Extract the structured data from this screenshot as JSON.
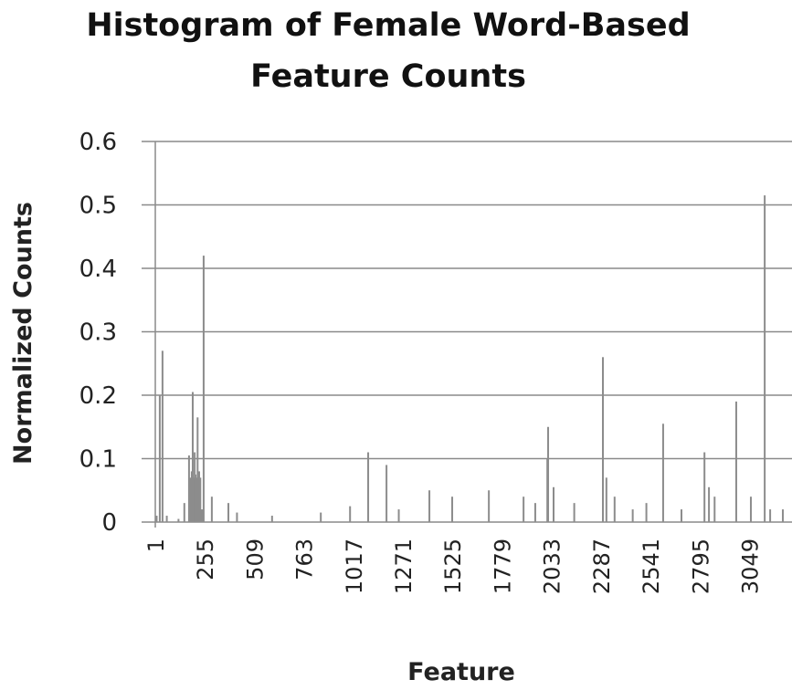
{
  "chart_data": {
    "type": "bar",
    "title": "Histogram of Female Word-Based Feature Counts",
    "x_label": "Feature",
    "y_label": "Normalized Counts",
    "x": [
      8,
      24,
      38,
      60,
      120,
      150,
      174,
      182,
      188,
      193,
      198,
      203,
      207,
      212,
      218,
      226,
      232,
      240,
      249,
      291,
      376,
      420,
      600,
      850,
      1000,
      1093,
      1187,
      1250,
      1407,
      1524,
      1712,
      1890,
      1950,
      2012,
      2016,
      2044,
      2150,
      2297,
      2315,
      2357,
      2450,
      2520,
      2606,
      2700,
      2818,
      2841,
      2870,
      2981,
      3056,
      3127,
      3155,
      3220
    ],
    "values": [
      0.01,
      0.2,
      0.27,
      0.01,
      0.005,
      0.03,
      0.105,
      0.07,
      0.08,
      0.205,
      0.07,
      0.11,
      0.075,
      0.07,
      0.165,
      0.08,
      0.07,
      0.02,
      0.42,
      0.04,
      0.03,
      0.015,
      0.01,
      0.015,
      0.025,
      0.11,
      0.09,
      0.02,
      0.05,
      0.04,
      0.05,
      0.04,
      0.03,
      0.1,
      0.15,
      0.055,
      0.03,
      0.26,
      0.07,
      0.04,
      0.02,
      0.03,
      0.155,
      0.02,
      0.11,
      0.055,
      0.04,
      0.19,
      0.04,
      0.515,
      0.02,
      0.02
    ],
    "color": "#8c8c8c",
    "xlim": [
      1,
      3267
    ],
    "xticks": [
      1,
      255,
      509,
      763,
      1017,
      1271,
      1525,
      1779,
      2033,
      2287,
      2541,
      2795,
      3049
    ],
    "ylim": [
      0,
      0.6
    ],
    "yticks": [
      0,
      0.1,
      0.2,
      0.3,
      0.4,
      0.5,
      0.6
    ],
    "grid": true
  }
}
